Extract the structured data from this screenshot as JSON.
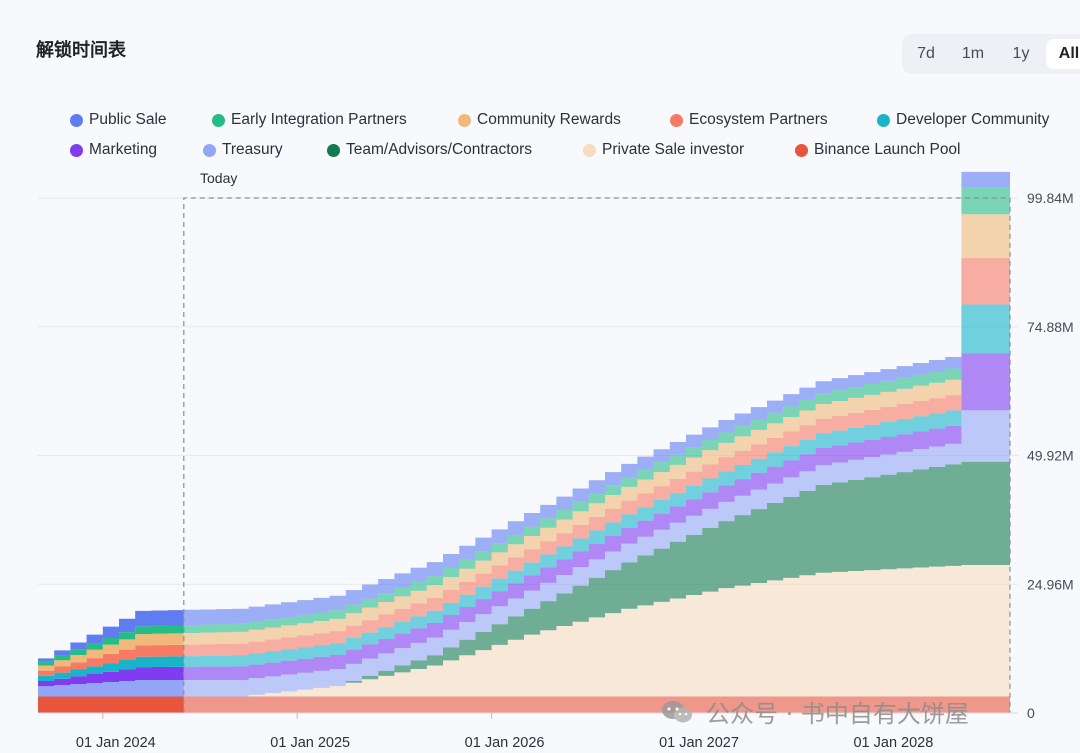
{
  "title": "解锁时间表",
  "range_buttons": [
    {
      "label": "7d",
      "active": false
    },
    {
      "label": "1m",
      "active": false
    },
    {
      "label": "1y",
      "active": false
    },
    {
      "label": "All",
      "active": true
    }
  ],
  "today_label": "Today",
  "watermark_text": "公众号 · 书中自有大饼屋",
  "chart_data": {
    "type": "area",
    "stacked": true,
    "step": true,
    "x_ticks": [
      "01 Jan 2024",
      "01 Jan 2025",
      "01 Jan 2026",
      "01 Jan 2027",
      "01 Jan 2028"
    ],
    "x_range": [
      "2023-09-01",
      "2028-09-01"
    ],
    "today": "2024-06-01",
    "y_ticks": [
      "0",
      "24.96M",
      "49.92M",
      "74.88M",
      "99.84M"
    ],
    "ylim": [
      0,
      99.84
    ],
    "y_unit": "M",
    "legend_position": "top",
    "grid": true,
    "series": [
      {
        "name": "Binance Launch Pool",
        "color": "#e8553d",
        "segments": [
          [
            0,
            3.2,
            3.2
          ]
        ]
      },
      {
        "name": "Private Sale investor",
        "color": "#f7dcc0",
        "segments": [
          [
            0,
            0,
            0
          ],
          [
            12,
            0,
            2
          ],
          [
            18,
            2,
            6
          ],
          [
            24,
            6,
            12
          ],
          [
            30,
            12,
            17
          ],
          [
            36,
            17,
            21
          ],
          [
            42,
            21,
            24
          ],
          [
            48,
            24,
            25.5
          ],
          [
            57,
            25.5,
            25.5
          ]
        ]
      },
      {
        "name": "Team/Advisors/Contractors",
        "color": "#147a50",
        "segments": [
          [
            0,
            0,
            0
          ],
          [
            18,
            0,
            2
          ],
          [
            24,
            2,
            5
          ],
          [
            30,
            5,
            9
          ],
          [
            36,
            9,
            13
          ],
          [
            42,
            13,
            17
          ],
          [
            48,
            17,
            20
          ],
          [
            57,
            20,
            20
          ]
        ]
      },
      {
        "name": "Treasury",
        "color": "#93a6f5",
        "segments": [
          [
            0,
            2,
            3.2
          ],
          [
            6,
            3.2,
            3.2
          ],
          [
            12,
            3.2,
            4
          ],
          [
            57,
            4,
            10
          ]
        ]
      },
      {
        "name": "Marketing",
        "color": "#7f3cf0",
        "segments": [
          [
            0,
            1,
            2.5
          ],
          [
            6,
            2.5,
            3.5
          ],
          [
            57,
            3.5,
            11
          ]
        ]
      },
      {
        "name": "Developer Community",
        "color": "#18b4c9",
        "segments": [
          [
            0,
            1,
            2
          ],
          [
            6,
            2,
            3
          ],
          [
            57,
            3,
            9.5
          ]
        ]
      },
      {
        "name": "Ecosystem Partners",
        "color": "#f77a64",
        "segments": [
          [
            0,
            1,
            2.2
          ],
          [
            6,
            2.2,
            3
          ],
          [
            57,
            3,
            9
          ]
        ]
      },
      {
        "name": "Community Rewards",
        "color": "#f0b97a",
        "segments": [
          [
            0,
            1,
            2.2
          ],
          [
            6,
            2.2,
            3
          ],
          [
            57,
            3,
            8.5
          ]
        ]
      },
      {
        "name": "Early Integration Partners",
        "color": "#24bd86",
        "segments": [
          [
            0,
            0.8,
            1.5
          ],
          [
            6,
            1.5,
            2.2
          ],
          [
            57,
            2.2,
            5.2
          ]
        ]
      },
      {
        "name": "Public Sale",
        "color": "#5f7cf0",
        "segments": [
          [
            0,
            0.6,
            3
          ],
          [
            6,
            3,
            2.2
          ],
          [
            57,
            2.2,
            3
          ]
        ]
      }
    ]
  },
  "legend_rows": [
    [
      "Public Sale",
      "Early Integration Partners",
      "Community Rewards",
      "Ecosystem Partners",
      "Developer Community"
    ],
    [
      "Marketing",
      "Treasury",
      "Team/Advisors/Contractors",
      "Private Sale investor",
      "Binance Launch Pool"
    ]
  ]
}
